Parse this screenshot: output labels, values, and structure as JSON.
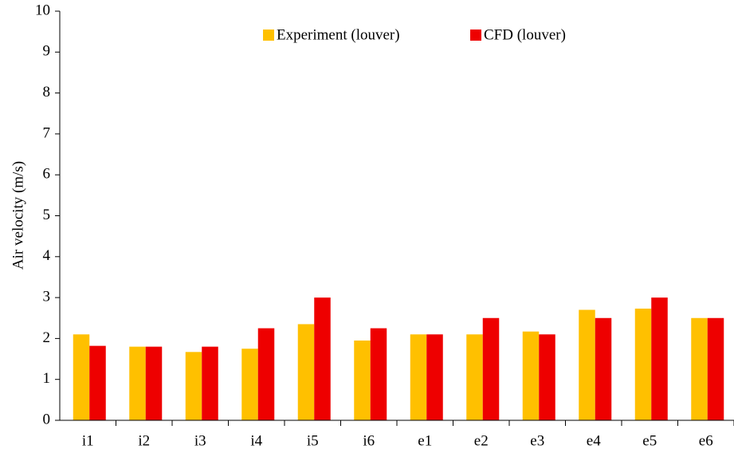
{
  "chart_data": {
    "type": "bar",
    "y_label": "Air velocity (m/s)",
    "categories": [
      "i1",
      "i2",
      "i3",
      "i4",
      "i5",
      "i6",
      "e1",
      "e2",
      "e3",
      "e4",
      "e5",
      "e6"
    ],
    "series": [
      {
        "name": "Experiment (louver)",
        "color": "#ffc000",
        "values": [
          2.1,
          1.8,
          1.67,
          1.75,
          2.35,
          1.95,
          2.1,
          2.1,
          2.17,
          2.7,
          2.73,
          2.5
        ]
      },
      {
        "name": "CFD (louver)",
        "color": "#ee0000",
        "values": [
          1.82,
          1.8,
          1.8,
          2.25,
          3.0,
          2.25,
          2.1,
          2.5,
          2.1,
          2.5,
          3.0,
          2.5
        ]
      }
    ],
    "ylim": [
      0,
      10
    ],
    "yticks": [
      0,
      1,
      2,
      3,
      4,
      5,
      6,
      7,
      8,
      9,
      10
    ],
    "grid": false,
    "legend": "top"
  }
}
